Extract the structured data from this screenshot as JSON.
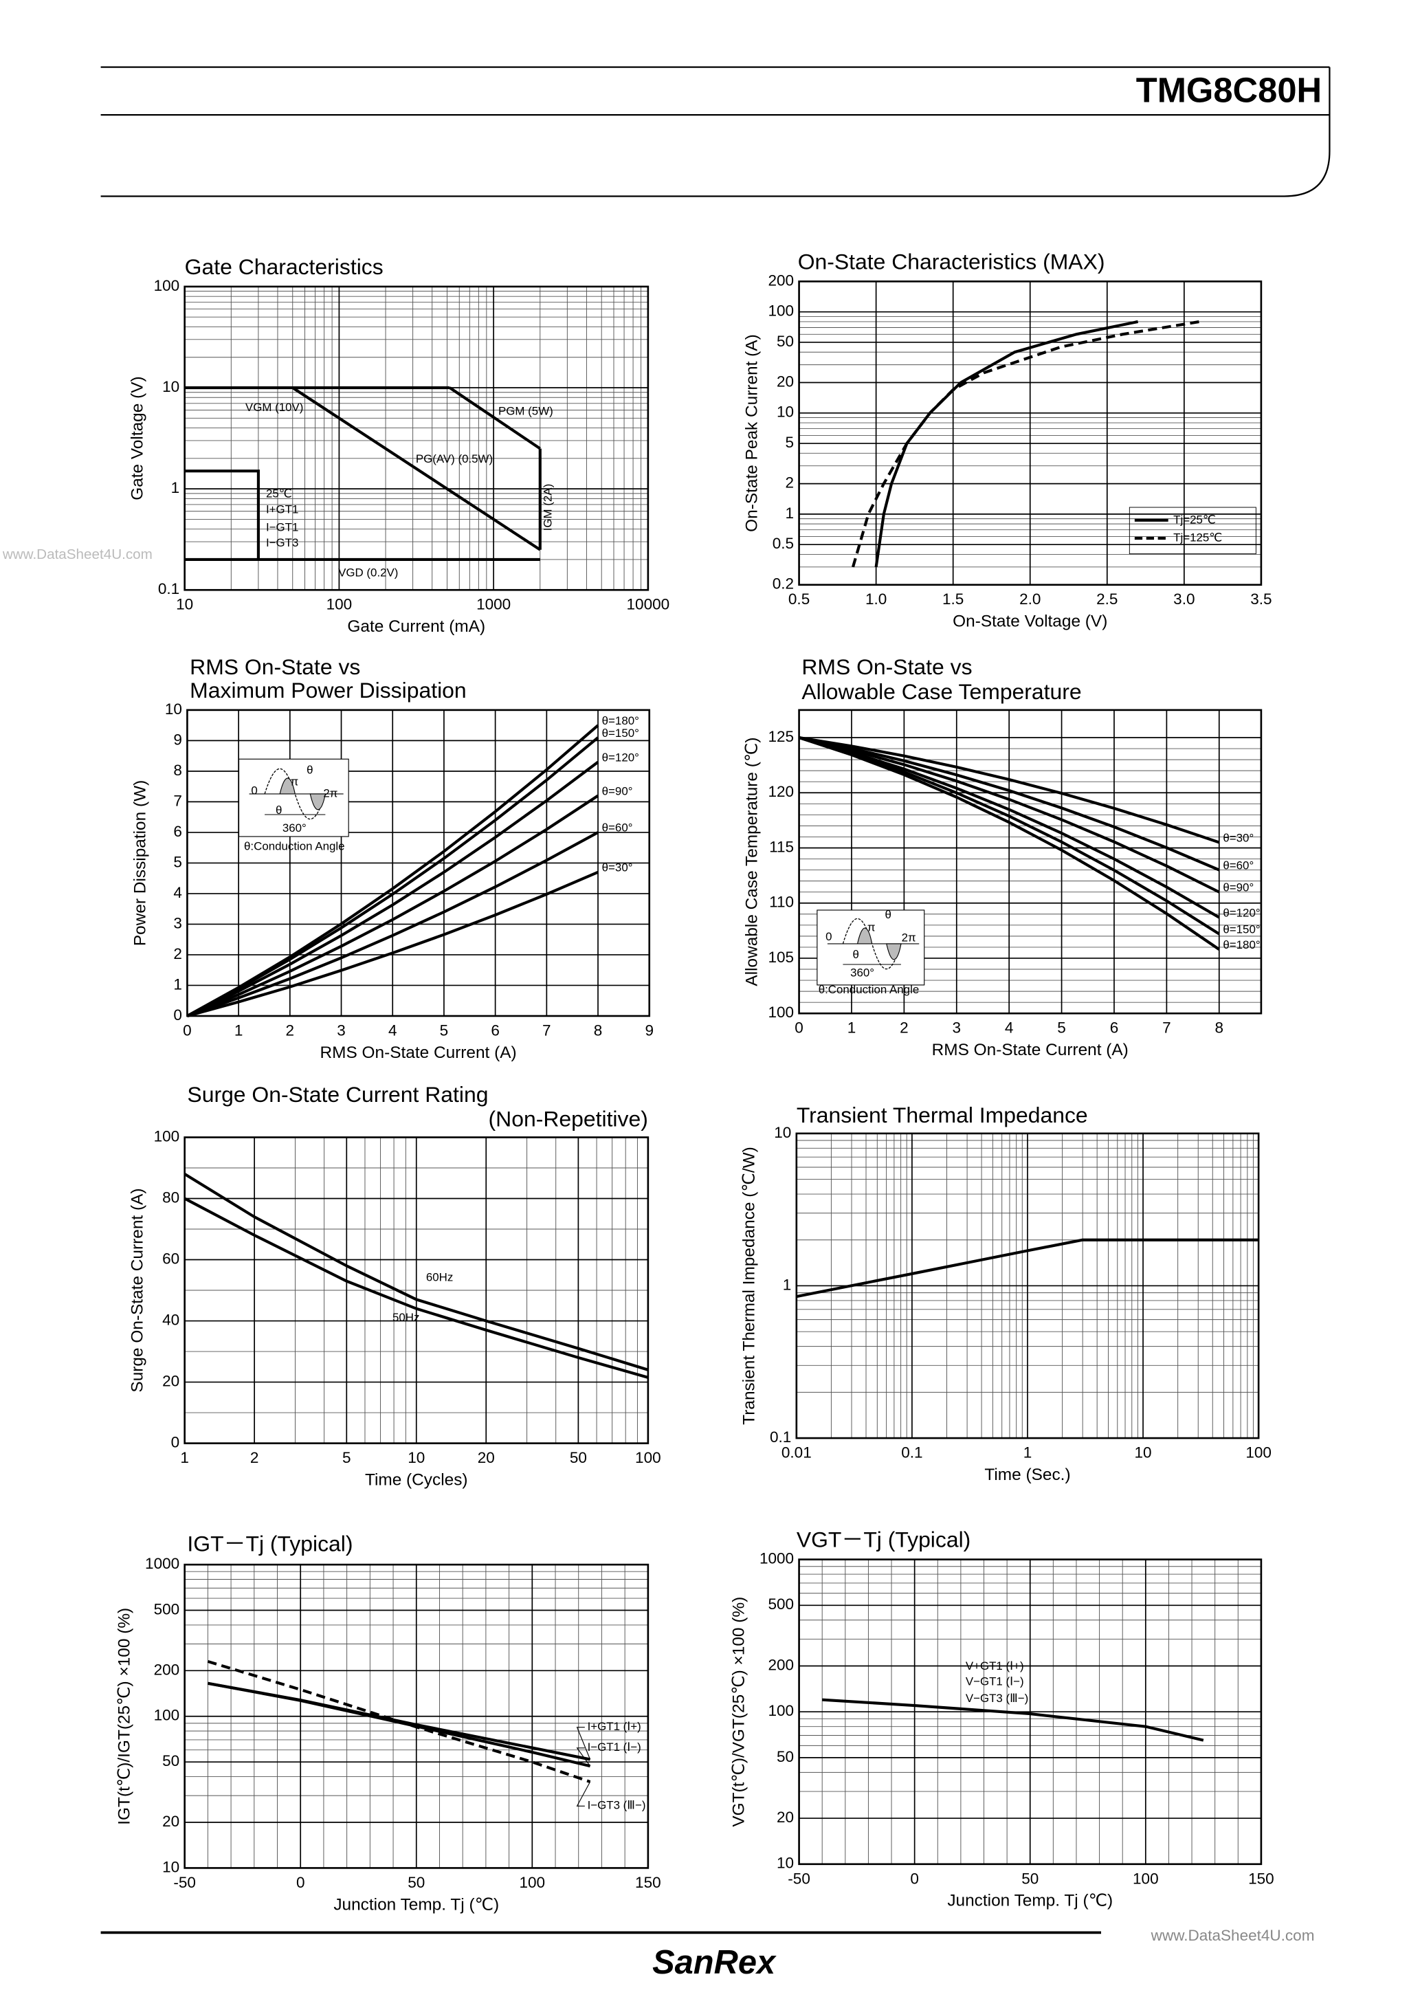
{
  "header": {
    "title": "TMG8C80H"
  },
  "footer": {
    "brand": "SanRex",
    "watermark": "www.DataSheet4U.com"
  },
  "chart_data": [
    {
      "type": "line",
      "title": "Gate Characteristics",
      "xlabel": "Gate Current (mA)",
      "ylabel": "Gate Voltage (V)",
      "xscale": "log",
      "yscale": "log",
      "xlim": [
        10,
        10000
      ],
      "ylim": [
        0.1,
        100
      ],
      "xticks": [
        10,
        100,
        1000,
        10000
      ],
      "yticks": [
        0.1,
        1,
        10,
        100
      ],
      "grid": true,
      "minor_grid": true,
      "series": [
        {
          "color": "#000",
          "x": [
            10,
            520
          ],
          "values": [
            10,
            10
          ]
        },
        {
          "color": "#000",
          "x": [
            520,
            2000
          ],
          "values": [
            10,
            2.5
          ]
        },
        {
          "color": "#000",
          "x": [
            2000,
            2000
          ],
          "values": [
            2.5,
            0.25
          ]
        },
        {
          "color": "#000",
          "x": [
            50,
            2000
          ],
          "values": [
            10,
            0.25
          ]
        },
        {
          "color": "#000",
          "x": [
            10,
            2000
          ],
          "values": [
            0.2,
            0.2
          ]
        },
        {
          "color": "#000",
          "x": [
            10,
            30,
            30
          ],
          "values": [
            1.5,
            1.5,
            0.2
          ]
        }
      ],
      "annotations": [
        "VGM (10V)",
        "PGM (5W)",
        "PG(AV) (0.5W)",
        "IGM (2A)",
        "VGD (0.2V)",
        "25℃",
        "I+GT1",
        "I−GT1",
        "I−GT3"
      ]
    },
    {
      "type": "line",
      "title": "On-State Characteristics (MAX)",
      "xlabel": "On-State Voltage (V)",
      "ylabel": "On-State  Peak Current (A)",
      "xscale": "linear",
      "yscale": "log",
      "xlim": [
        0.5,
        3.5
      ],
      "ylim": [
        0.2,
        200
      ],
      "xticks": [
        0.5,
        {
          "value": 1,
          "label": "1.0"
        },
        1.5,
        {
          "value": 2,
          "label": "2.0"
        },
        2.5,
        {
          "value": 3,
          "label": "3.0"
        },
        3.5
      ],
      "yticks": [
        0.2,
        0.5,
        1,
        2,
        5,
        10,
        20,
        50,
        100,
        200
      ],
      "grid": true,
      "minor_grid": true,
      "legend": "lower right",
      "series": [
        {
          "name": "Tj=25℃",
          "color": "#000",
          "x": [
            1.0,
            1.05,
            1.1,
            1.2,
            1.35,
            1.55,
            1.9,
            2.3,
            2.7
          ],
          "values": [
            0.3,
            1,
            2,
            5,
            10,
            20,
            40,
            60,
            80
          ]
        },
        {
          "name": "Tj=125℃",
          "color": "#000",
          "dash": true,
          "x": [
            0.85,
            0.95,
            1.05,
            1.2,
            1.35,
            1.5,
            1.7,
            2.2,
            2.6,
            3.1
          ],
          "values": [
            0.3,
            1,
            2,
            5,
            10,
            17,
            25,
            45,
            60,
            80
          ]
        }
      ]
    },
    {
      "type": "line",
      "title": [
        "RMS On-State vs",
        "Maximum Power Dissipation"
      ],
      "xlabel": "RMS On-State Current (A)",
      "ylabel": "Power Dissipation (W)",
      "xscale": "linear",
      "yscale": "linear",
      "xlim": [
        0,
        9
      ],
      "ylim": [
        0,
        10
      ],
      "xticks": [
        0,
        1,
        2,
        3,
        4,
        5,
        6,
        7,
        8,
        9
      ],
      "yticks": [
        0,
        1,
        2,
        3,
        4,
        5,
        6,
        7,
        8,
        9,
        10
      ],
      "grid": true,
      "legend": "line end",
      "x": [
        0,
        1,
        2,
        3,
        4,
        5,
        6,
        7,
        8
      ],
      "series": [
        {
          "name": "θ=180°",
          "color": "#000",
          "values": [
            0,
            0.93,
            1.93,
            3.01,
            4.16,
            5.38,
            6.68,
            8.05,
            9.5
          ]
        },
        {
          "name": "θ=150°",
          "color": "#000",
          "values": [
            0,
            0.89,
            1.85,
            2.88,
            3.98,
            5.15,
            6.4,
            7.71,
            9.1
          ]
        },
        {
          "name": "θ=120°",
          "color": "#000",
          "values": [
            0,
            0.81,
            1.69,
            2.63,
            3.63,
            4.7,
            5.84,
            7.04,
            8.3
          ]
        },
        {
          "name": "θ=90°",
          "color": "#000",
          "values": [
            0,
            0.7,
            1.46,
            2.28,
            3.15,
            4.08,
            5.06,
            6.1,
            7.2
          ]
        },
        {
          "name": "θ=60°",
          "color": "#000",
          "values": [
            0,
            0.59,
            1.22,
            1.9,
            2.63,
            3.4,
            4.22,
            5.09,
            6.0
          ]
        },
        {
          "name": "θ=30°",
          "color": "#000",
          "values": [
            0,
            0.46,
            0.95,
            1.49,
            2.06,
            2.66,
            3.3,
            3.98,
            4.7
          ]
        }
      ],
      "annotations": [
        "0",
        "π",
        "2π",
        "θ",
        "θ",
        "360°",
        "θ:Conduction Angle"
      ]
    },
    {
      "type": "line",
      "title": [
        "RMS On-State vs",
        "Allowable Case Temperature"
      ],
      "xlabel": "RMS On-State Current (A)",
      "ylabel": "Allowable Case Temperature (℃)",
      "xscale": "linear",
      "yscale": "linear",
      "xlim": [
        0,
        8.8
      ],
      "ylim": [
        100,
        127.5
      ],
      "xticks": [
        0,
        1,
        2,
        3,
        4,
        5,
        6,
        7,
        8
      ],
      "yticks": [
        100,
        105,
        110,
        115,
        120,
        125
      ],
      "grid": true,
      "yminor": 5,
      "legend": "line end",
      "x": [
        0,
        1,
        2,
        3,
        4,
        5,
        6,
        7,
        8
      ],
      "series": [
        {
          "name": "θ=30°",
          "color": "#000",
          "values": [
            125,
            124.23,
            123.34,
            122.33,
            121.2,
            119.95,
            118.59,
            117.1,
            115.5
          ]
        },
        {
          "name": "θ=60°",
          "color": "#000",
          "values": [
            125,
            124.02,
            122.9,
            121.62,
            120.2,
            118.62,
            116.9,
            115.02,
            113
          ]
        },
        {
          "name": "θ=90°",
          "color": "#000",
          "values": [
            125,
            123.86,
            122.55,
            121.06,
            119.4,
            117.56,
            115.55,
            113.36,
            111
          ]
        },
        {
          "name": "θ=120°",
          "color": "#000",
          "values": [
            125,
            123.67,
            122.15,
            120.41,
            118.48,
            116.34,
            114.0,
            111.45,
            108.7
          ]
        },
        {
          "name": "θ=150°",
          "color": "#000",
          "values": [
            125,
            123.55,
            121.89,
            119.99,
            117.88,
            115.54,
            112.98,
            110.2,
            107.2
          ]
        },
        {
          "name": "θ=180°",
          "color": "#000",
          "values": [
            125,
            123.44,
            121.64,
            119.6,
            117.32,
            114.8,
            112.04,
            109.04,
            105.8
          ]
        }
      ],
      "annotations": [
        "0",
        "π",
        "2π",
        "θ",
        "θ",
        "360°",
        "θ:Conduction Angle"
      ]
    },
    {
      "type": "line",
      "title": [
        "Surge On-State Current Rating",
        "(Non-Repetitive)"
      ],
      "xlabel": "Time (Cycles)",
      "ylabel": "Surge On-State Current (A)",
      "xscale": "log",
      "yscale": "linear",
      "xlim": [
        1,
        100
      ],
      "ylim": [
        0,
        100
      ],
      "xticks": [
        1,
        2,
        5,
        10,
        20,
        50,
        100
      ],
      "yticks": [
        0,
        20,
        40,
        60,
        80,
        100
      ],
      "grid": true,
      "minor_grid": true,
      "yminor": 2,
      "series": [
        {
          "color": "#000",
          "x": [
            1,
            2,
            5,
            10,
            20,
            50,
            100
          ],
          "values": [
            88,
            74,
            58,
            47,
            40,
            31,
            24
          ]
        },
        {
          "color": "#000",
          "x": [
            1,
            2,
            5,
            10,
            20,
            50,
            100
          ],
          "values": [
            80,
            68,
            53,
            44,
            37,
            28,
            21.5
          ]
        }
      ],
      "annotations": [
        "60Hz",
        "50Hz"
      ]
    },
    {
      "type": "line",
      "title": "Transient Thermal Impedance",
      "xlabel": "Time (Sec.)",
      "ylabel": "Transient Thermal Impedance (℃/W)",
      "xscale": "log",
      "yscale": "log",
      "xlim": [
        0.01,
        100
      ],
      "ylim": [
        0.1,
        10
      ],
      "xticks": [
        0.01,
        0.1,
        1,
        10,
        100
      ],
      "yticks": [
        0.1,
        1,
        10
      ],
      "grid": true,
      "minor_grid": true,
      "series": [
        {
          "color": "#000",
          "x": [
            0.01,
            0.1,
            1,
            3,
            100
          ],
          "values": [
            0.85,
            1.2,
            1.7,
            2.0,
            2.0
          ]
        }
      ]
    },
    {
      "type": "line",
      "title": "IGT－Tj (Typical)",
      "xlabel": "Junction Temp. Tj (℃)",
      "ylabel": "IGT(t℃)/IGT(25℃) ×100 (%)",
      "xscale": "linear",
      "yscale": "log",
      "xlim": [
        -50,
        150
      ],
      "ylim": [
        10,
        1000
      ],
      "xticks": [
        -50,
        0,
        50,
        100,
        150
      ],
      "yticks": [
        10,
        20,
        50,
        100,
        200,
        500,
        1000
      ],
      "grid": true,
      "minor_grid": true,
      "xminor": 5,
      "legend": "leader",
      "series": [
        {
          "name": "I+GT1 (Ⅰ+)",
          "color": "#000",
          "x": [
            -40,
            0,
            50,
            100,
            125
          ],
          "values": [
            165,
            128,
            88,
            62,
            52
          ]
        },
        {
          "name": "I−GT1 (Ⅰ−)",
          "color": "#000",
          "x": [
            -40,
            0,
            50,
            100,
            125
          ],
          "values": [
            165,
            127,
            86,
            58,
            47
          ]
        },
        {
          "name": "I−GT3 (Ⅲ−)",
          "color": "#000",
          "dash": true,
          "x": [
            -40,
            0,
            50,
            100,
            125
          ],
          "values": [
            230,
            150,
            85,
            50,
            37
          ]
        }
      ]
    },
    {
      "type": "line",
      "title": "VGT－Tj (Typical)",
      "xlabel": "Junction Temp. Tj (℃)",
      "ylabel": "VGT(t℃)/VGT(25℃) ×100 (%)",
      "xscale": "linear",
      "yscale": "log",
      "xlim": [
        -50,
        150
      ],
      "ylim": [
        10,
        1000
      ],
      "xticks": [
        -50,
        0,
        50,
        100,
        150
      ],
      "yticks": [
        10,
        20,
        50,
        100,
        200,
        500,
        1000
      ],
      "grid": true,
      "minor_grid": true,
      "xminor": 5,
      "series": [
        {
          "color": "#000",
          "x": [
            -40,
            0,
            50,
            100,
            125
          ],
          "values": [
            120,
            110,
            97,
            80,
            65
          ]
        }
      ],
      "annotations": [
        "V+GT1 (Ⅰ+)",
        "V−GT1 (Ⅰ−)",
        "V−GT3 (Ⅲ−)"
      ]
    }
  ]
}
